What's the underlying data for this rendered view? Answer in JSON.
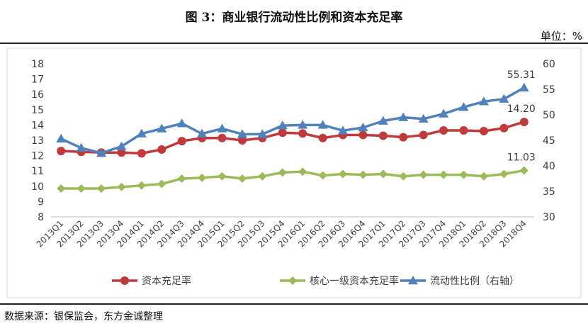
{
  "header": {
    "title": "图 3：商业银行流动性比例和资本充足率",
    "unit": "单位：%"
  },
  "footer": {
    "source": "数据来源：银保监会，东方金诚整理"
  },
  "chart_data": {
    "type": "line",
    "title": "图 3：商业银行流动性比例和资本充足率",
    "categories": [
      "2013Q1",
      "2013Q2",
      "2013Q3",
      "2013Q4",
      "2014Q1",
      "2014Q2",
      "2014Q3",
      "2014Q4",
      "2015Q1",
      "2015Q2",
      "2015Q3",
      "2015Q4",
      "2016Q1",
      "2016Q2",
      "2016Q3",
      "2016Q4",
      "2017Q1",
      "2017Q2",
      "2017Q3",
      "2017Q4",
      "2018Q1",
      "2018Q2",
      "2018Q3",
      "2018Q4"
    ],
    "y_left": {
      "min": 8,
      "max": 18,
      "ticks": [
        8,
        9,
        10,
        11,
        12,
        13,
        14,
        15,
        16,
        17,
        18
      ]
    },
    "y_right": {
      "min": 30,
      "max": 60,
      "ticks": [
        30,
        35,
        40,
        45,
        50,
        55,
        60
      ]
    },
    "grid": false,
    "legend_position": "bottom",
    "series": [
      {
        "name": "资本充足率",
        "axis": "left",
        "color": "#C0393B",
        "marker": "circle",
        "values": [
          12.3,
          12.25,
          12.2,
          12.2,
          12.15,
          12.4,
          12.95,
          13.15,
          13.15,
          13.0,
          13.15,
          13.5,
          13.45,
          13.15,
          13.35,
          13.35,
          13.3,
          13.2,
          13.35,
          13.65,
          13.65,
          13.6,
          13.8,
          14.2
        ],
        "end_label": "14.20"
      },
      {
        "name": "核心一级资本充足率",
        "axis": "left",
        "color": "#9BBB59",
        "marker": "diamond",
        "values": [
          9.85,
          9.85,
          9.85,
          9.95,
          10.05,
          10.15,
          10.5,
          10.55,
          10.65,
          10.5,
          10.65,
          10.9,
          10.95,
          10.7,
          10.8,
          10.75,
          10.8,
          10.65,
          10.75,
          10.75,
          10.75,
          10.65,
          10.8,
          11.03
        ],
        "end_label": "11.03"
      },
      {
        "name": "流动性比例（右轴）",
        "axis": "right",
        "color": "#4F81BD",
        "marker": "triangle",
        "values": [
          45.3,
          43.5,
          42.5,
          43.8,
          46.3,
          47.3,
          48.3,
          46.3,
          47.3,
          46.2,
          46.2,
          47.9,
          48.0,
          48.0,
          46.9,
          47.5,
          48.8,
          49.5,
          49.2,
          50.2,
          51.5,
          52.6,
          53.1,
          55.31
        ],
        "end_label": "55.31"
      }
    ]
  }
}
